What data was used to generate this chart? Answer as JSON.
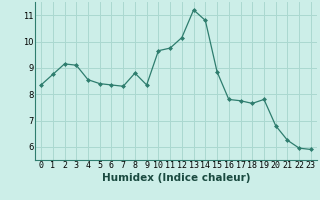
{
  "x": [
    0,
    1,
    2,
    3,
    4,
    5,
    6,
    7,
    8,
    9,
    10,
    11,
    12,
    13,
    14,
    15,
    16,
    17,
    18,
    19,
    20,
    21,
    22,
    23
  ],
  "y": [
    8.35,
    8.75,
    9.15,
    9.1,
    8.55,
    8.4,
    8.35,
    8.3,
    8.8,
    8.35,
    9.65,
    9.75,
    10.15,
    11.2,
    10.8,
    8.85,
    7.8,
    7.75,
    7.65,
    7.8,
    6.8,
    6.25,
    5.95,
    5.9
  ],
  "xlabel": "Humidex (Indice chaleur)",
  "ylim": [
    5.5,
    11.5
  ],
  "xlim": [
    -0.5,
    23.5
  ],
  "yticks": [
    6,
    7,
    8,
    9,
    10,
    11
  ],
  "xticks": [
    0,
    1,
    2,
    3,
    4,
    5,
    6,
    7,
    8,
    9,
    10,
    11,
    12,
    13,
    14,
    15,
    16,
    17,
    18,
    19,
    20,
    21,
    22,
    23
  ],
  "line_color": "#2e7d6e",
  "marker": "D",
  "marker_size": 2.0,
  "bg_color": "#cceee8",
  "grid_color": "#aad8d0",
  "tick_label_fontsize": 6.0,
  "xlabel_fontsize": 7.5,
  "spine_color": "#2e7d6e"
}
